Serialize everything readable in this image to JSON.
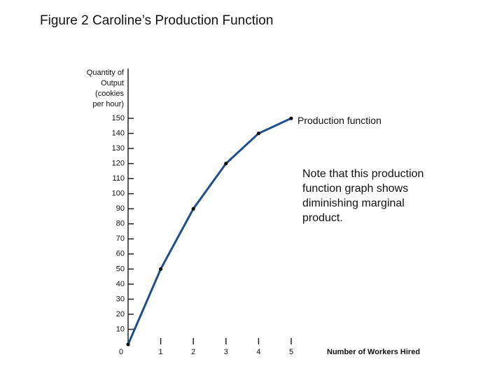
{
  "chart_data": {
    "type": "line",
    "title": "Figure 2 Caroline’s Production Function",
    "ylabel": [
      "Quantity of",
      "Output",
      "(cookies",
      "per hour)"
    ],
    "xlabel": "Number of Workers Hired",
    "x": [
      0,
      1,
      2,
      3,
      4,
      5
    ],
    "series": [
      {
        "name": "Production function",
        "color": "#1f4e8c",
        "values": [
          0,
          50,
          90,
          120,
          140,
          150
        ]
      }
    ],
    "annotation": [
      "Note that this production",
      "function graph shows",
      "diminishing marginal",
      "product."
    ],
    "xlim": [
      0,
      5
    ],
    "xticks": [
      0,
      1,
      2,
      3,
      4,
      5
    ],
    "ylim": [
      0,
      183
    ],
    "yticks": [
      10,
      20,
      30,
      40,
      50,
      60,
      70,
      80,
      90,
      100,
      110,
      120,
      130,
      140,
      150
    ],
    "grid": false
  }
}
